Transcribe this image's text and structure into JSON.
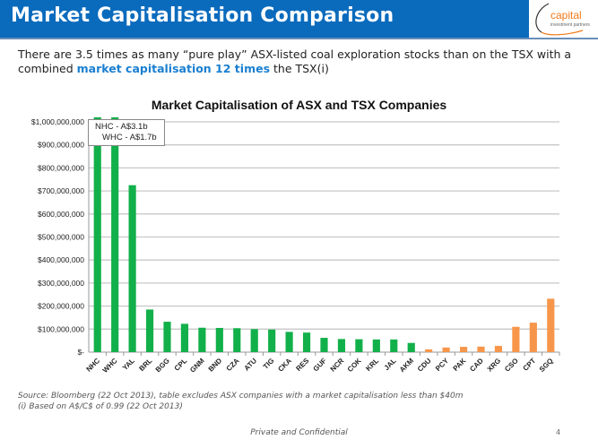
{
  "header": {
    "title": "Market Capitalisation Comparison",
    "logo_text": "capital",
    "logo_subtext": "investment partners"
  },
  "intro": {
    "text_before": "There are 3.5 times as many “pure play” ASX-listed coal exploration stocks than on the TSX with a combined ",
    "highlight": "market capitalisation 12 times",
    "text_after": " the TSX(i)"
  },
  "callout": {
    "line1": "NHC - A$3.1b",
    "line2": "WHC - A$1.7b"
  },
  "colors": {
    "header_bg": "#0a6bbd",
    "asx_bar": "#12b04a",
    "tsx_bar": "#f7964a",
    "highlight_text": "#1a7fd0",
    "logo_orange": "#f07a1a"
  },
  "chart_data": {
    "type": "bar",
    "title": "Market Capitalisation of ASX and TSX Companies",
    "xlabel": "",
    "ylabel": "",
    "ylim": [
      0,
      1000000000
    ],
    "grid": true,
    "yticks": [
      {
        "value": 0,
        "label": "$-"
      },
      {
        "value": 100000000,
        "label": "$100,000,000"
      },
      {
        "value": 200000000,
        "label": "$200,000,000"
      },
      {
        "value": 300000000,
        "label": "$300,000,000"
      },
      {
        "value": 400000000,
        "label": "$400,000,000"
      },
      {
        "value": 500000000,
        "label": "$500,000,000"
      },
      {
        "value": 600000000,
        "label": "$600,000,000"
      },
      {
        "value": 700000000,
        "label": "$700,000,000"
      },
      {
        "value": 800000000,
        "label": "$800,000,000"
      },
      {
        "value": 900000000,
        "label": "$900,000,000"
      },
      {
        "value": 1000000000,
        "label": "$1,000,000,000"
      }
    ],
    "categories": [
      "NHC",
      "WHC",
      "YAL",
      "BRL",
      "BGG",
      "CPL",
      "GNM",
      "BND",
      "CZA",
      "ATU",
      "TIG",
      "CKA",
      "RES",
      "GUF",
      "NCR",
      "COK",
      "KRL",
      "JAL",
      "AKM",
      "CDU",
      "PCY",
      "PAK",
      "CAD",
      "XRG",
      "CSO",
      "CPT",
      "SGQ"
    ],
    "series": [
      {
        "name": "ASX",
        "color": "#12b04a",
        "categories": [
          "NHC",
          "WHC",
          "YAL",
          "BRL",
          "BGG",
          "CPL",
          "GNM",
          "BND",
          "CZA",
          "ATU",
          "TIG",
          "CKA",
          "RES",
          "GUF",
          "NCR",
          "COK",
          "KRL",
          "JAL",
          "AKM"
        ],
        "values": [
          3100000000,
          1700000000,
          725000000,
          185000000,
          132000000,
          123000000,
          106000000,
          105000000,
          104000000,
          100000000,
          98000000,
          88000000,
          85000000,
          62000000,
          57000000,
          56000000,
          55000000,
          55000000,
          40000000
        ]
      },
      {
        "name": "TSX",
        "color": "#f7964a",
        "categories": [
          "CDU",
          "PCY",
          "PAK",
          "CAD",
          "XRG",
          "CSO",
          "CPT",
          "SGQ"
        ],
        "values": [
          12000000,
          20000000,
          23000000,
          24000000,
          27000000,
          110000000,
          128000000,
          232000000
        ]
      }
    ],
    "annotations": [
      "NHC - A$3.1b",
      "WHC - A$1.7b"
    ]
  },
  "footnotes": {
    "source": "Source: Bloomberg (22 Oct 2013), table excludes ASX companies with a market capitalisation less than $40m",
    "note": "(i) Based on A$/C$ of 0.99 (22 Oct 2013)"
  },
  "footer": {
    "confidential": "Private and Confidential",
    "page_number": "4"
  }
}
